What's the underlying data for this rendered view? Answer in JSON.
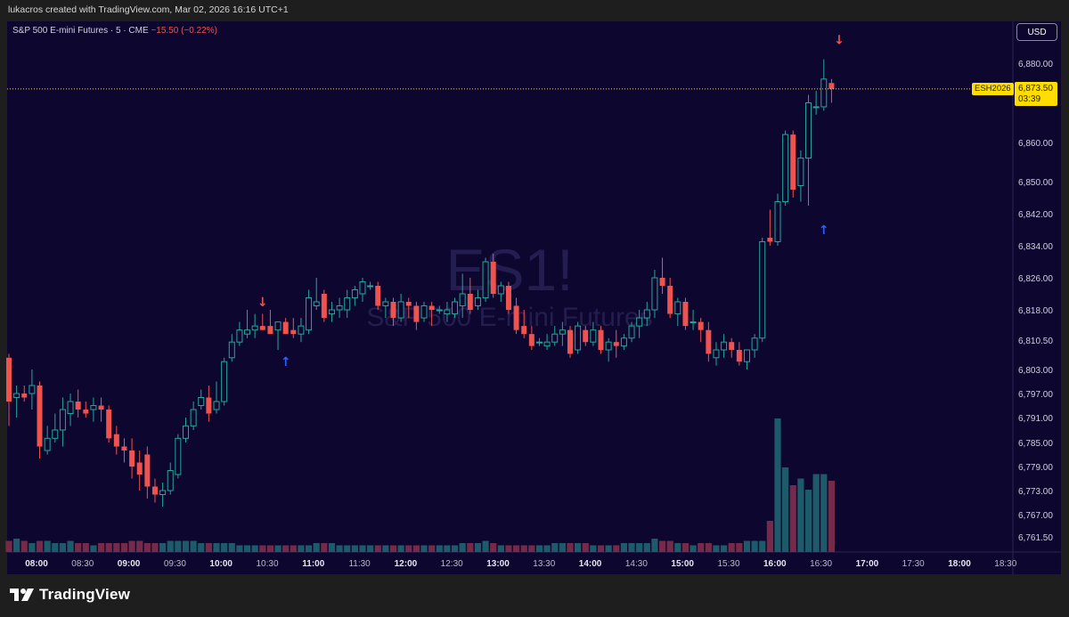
{
  "header": {
    "attribution": "lukacros created with TradingView.com, Mar 02, 2026 16:16 UTC+1"
  },
  "legend": {
    "symbol": "S&P 500 E-mini Futures · 5 · CME",
    "change": "−15.50 (−0.22%)"
  },
  "currency_button": "USD",
  "watermark": {
    "ticker": "ES1!",
    "name": "S&P 500 E-mini Futures"
  },
  "last_price": {
    "contract": "ESH2026",
    "price": "6,873.50",
    "countdown": "03:39"
  },
  "footer": {
    "brand": "TradingView"
  },
  "colors": {
    "background": "#0d062f",
    "up": "#26a69a",
    "down": "#ef5350",
    "signal_up": "#2962ff",
    "signal_down": "#ef5350",
    "price_tag": "#ffdd00"
  },
  "chart_data": {
    "type": "candlestick",
    "interval": "5",
    "x_tick_labels": [
      "08:00",
      "08:30",
      "09:00",
      "09:30",
      "10:00",
      "10:30",
      "11:00",
      "11:30",
      "12:00",
      "12:30",
      "13:00",
      "13:30",
      "14:00",
      "14:30",
      "15:00",
      "15:30",
      "16:00",
      "16:30",
      "17:00",
      "17:30",
      "18:00",
      "18:30"
    ],
    "y_tick_labels": [
      "6,880.00",
      "6,860.00",
      "6,850.00",
      "6,842.00",
      "6,834.00",
      "6,826.00",
      "6,818.00",
      "6,810.50",
      "6,803.00",
      "6,797.00",
      "6,791.00",
      "6,785.00",
      "6,779.00",
      "6,773.00",
      "6,767.00",
      "6,761.50"
    ],
    "y_tick_values": [
      6880,
      6860,
      6850,
      6842,
      6834,
      6826,
      6818,
      6810.5,
      6803,
      6797,
      6791,
      6785,
      6779,
      6773,
      6767,
      6761.5
    ],
    "start_time": "07:45",
    "last_price": 6873.5,
    "candles": [
      {
        "o": 6806,
        "h": 6807,
        "l": 6789,
        "c": 6795
      },
      {
        "o": 6796,
        "h": 6799,
        "l": 6791,
        "c": 6797
      },
      {
        "o": 6797,
        "h": 6799,
        "l": 6795,
        "c": 6796
      },
      {
        "o": 6797,
        "h": 6803,
        "l": 6793,
        "c": 6799
      },
      {
        "o": 6799,
        "h": 6800,
        "l": 6781,
        "c": 6784
      },
      {
        "o": 6783,
        "h": 6789,
        "l": 6782,
        "c": 6786
      },
      {
        "o": 6786,
        "h": 6792,
        "l": 6785,
        "c": 6788
      },
      {
        "o": 6788,
        "h": 6796,
        "l": 6784,
        "c": 6793
      },
      {
        "o": 6792,
        "h": 6797,
        "l": 6789,
        "c": 6795
      },
      {
        "o": 6795,
        "h": 6798,
        "l": 6791,
        "c": 6793
      },
      {
        "o": 6793,
        "h": 6795,
        "l": 6791,
        "c": 6792
      },
      {
        "o": 6793,
        "h": 6796,
        "l": 6790,
        "c": 6794
      },
      {
        "o": 6794,
        "h": 6796,
        "l": 6790,
        "c": 6793
      },
      {
        "o": 6793,
        "h": 6794,
        "l": 6785,
        "c": 6786
      },
      {
        "o": 6787,
        "h": 6789,
        "l": 6782,
        "c": 6784
      },
      {
        "o": 6784,
        "h": 6786,
        "l": 6780,
        "c": 6783
      },
      {
        "o": 6783,
        "h": 6786,
        "l": 6776,
        "c": 6779
      },
      {
        "o": 6780,
        "h": 6783,
        "l": 6773,
        "c": 6777
      },
      {
        "o": 6782,
        "h": 6784,
        "l": 6771,
        "c": 6774
      },
      {
        "o": 6774,
        "h": 6776,
        "l": 6770,
        "c": 6772
      },
      {
        "o": 6772,
        "h": 6775,
        "l": 6769,
        "c": 6773
      },
      {
        "o": 6773,
        "h": 6780,
        "l": 6772,
        "c": 6778
      },
      {
        "o": 6777,
        "h": 6787,
        "l": 6776,
        "c": 6786
      },
      {
        "o": 6786,
        "h": 6791,
        "l": 6785,
        "c": 6789
      },
      {
        "o": 6789,
        "h": 6795,
        "l": 6788,
        "c": 6793
      },
      {
        "o": 6794,
        "h": 6798,
        "l": 6793,
        "c": 6796
      },
      {
        "o": 6796,
        "h": 6799,
        "l": 6790,
        "c": 6792
      },
      {
        "o": 6793,
        "h": 6800,
        "l": 6792,
        "c": 6795
      },
      {
        "o": 6795,
        "h": 6806,
        "l": 6794,
        "c": 6805
      },
      {
        "o": 6806,
        "h": 6812,
        "l": 6805,
        "c": 6810
      },
      {
        "o": 6810,
        "h": 6815,
        "l": 6809,
        "c": 6813
      },
      {
        "o": 6812,
        "h": 6818,
        "l": 6811,
        "c": 6813
      },
      {
        "o": 6813,
        "h": 6817,
        "l": 6811,
        "c": 6814
      },
      {
        "o": 6814,
        "h": 6817,
        "l": 6813,
        "c": 6813
      },
      {
        "o": 6814,
        "h": 6818,
        "l": 6812,
        "c": 6812
      },
      {
        "o": 6813,
        "h": 6815,
        "l": 6808,
        "c": 6815
      },
      {
        "o": 6815,
        "h": 6816,
        "l": 6812,
        "c": 6812
      },
      {
        "o": 6813,
        "h": 6816,
        "l": 6811,
        "c": 6812
      },
      {
        "o": 6812,
        "h": 6816,
        "l": 6810,
        "c": 6814
      },
      {
        "o": 6813,
        "h": 6823,
        "l": 6812,
        "c": 6821
      },
      {
        "o": 6819,
        "h": 6826,
        "l": 6818,
        "c": 6820
      },
      {
        "o": 6822,
        "h": 6823,
        "l": 6815,
        "c": 6816
      },
      {
        "o": 6817,
        "h": 6820,
        "l": 6815,
        "c": 6818
      },
      {
        "o": 6818,
        "h": 6821,
        "l": 6816,
        "c": 6819
      },
      {
        "o": 6818,
        "h": 6823,
        "l": 6816,
        "c": 6821
      },
      {
        "o": 6821,
        "h": 6824,
        "l": 6819,
        "c": 6823
      },
      {
        "o": 6822,
        "h": 6826,
        "l": 6820,
        "c": 6825
      },
      {
        "o": 6824,
        "h": 6825,
        "l": 6823,
        "c": 6824
      },
      {
        "o": 6824,
        "h": 6825,
        "l": 6818,
        "c": 6819
      },
      {
        "o": 6819,
        "h": 6821,
        "l": 6816,
        "c": 6820
      },
      {
        "o": 6820,
        "h": 6821,
        "l": 6814,
        "c": 6816
      },
      {
        "o": 6816,
        "h": 6822,
        "l": 6815,
        "c": 6820
      },
      {
        "o": 6820,
        "h": 6821,
        "l": 6816,
        "c": 6819
      },
      {
        "o": 6819,
        "h": 6820,
        "l": 6813,
        "c": 6815
      },
      {
        "o": 6816,
        "h": 6820,
        "l": 6815,
        "c": 6819
      },
      {
        "o": 6819,
        "h": 6820,
        "l": 6814,
        "c": 6818
      },
      {
        "o": 6818,
        "h": 6819,
        "l": 6817,
        "c": 6818
      },
      {
        "o": 6817,
        "h": 6820,
        "l": 6815,
        "c": 6818
      },
      {
        "o": 6817,
        "h": 6821,
        "l": 6816,
        "c": 6820
      },
      {
        "o": 6819,
        "h": 6827,
        "l": 6816,
        "c": 6822
      },
      {
        "o": 6822,
        "h": 6826,
        "l": 6817,
        "c": 6818
      },
      {
        "o": 6819,
        "h": 6823,
        "l": 6818,
        "c": 6821
      },
      {
        "o": 6821,
        "h": 6831,
        "l": 6820,
        "c": 6830
      },
      {
        "o": 6830,
        "h": 6832,
        "l": 6821,
        "c": 6822
      },
      {
        "o": 6822,
        "h": 6825,
        "l": 6820,
        "c": 6824
      },
      {
        "o": 6824,
        "h": 6825,
        "l": 6817,
        "c": 6818
      },
      {
        "o": 6819,
        "h": 6821,
        "l": 6812,
        "c": 6813
      },
      {
        "o": 6814,
        "h": 6818,
        "l": 6811,
        "c": 6812
      },
      {
        "o": 6812,
        "h": 6814,
        "l": 6808,
        "c": 6809
      },
      {
        "o": 6810,
        "h": 6811,
        "l": 6809,
        "c": 6810
      },
      {
        "o": 6809,
        "h": 6812,
        "l": 6808,
        "c": 6810
      },
      {
        "o": 6810,
        "h": 6814,
        "l": 6809,
        "c": 6812
      },
      {
        "o": 6812,
        "h": 6815,
        "l": 6809,
        "c": 6813
      },
      {
        "o": 6813,
        "h": 6814,
        "l": 6806,
        "c": 6807
      },
      {
        "o": 6808,
        "h": 6815,
        "l": 6807,
        "c": 6814
      },
      {
        "o": 6813,
        "h": 6814,
        "l": 6809,
        "c": 6810
      },
      {
        "o": 6810,
        "h": 6815,
        "l": 6809,
        "c": 6813
      },
      {
        "o": 6813,
        "h": 6814,
        "l": 6807,
        "c": 6808
      },
      {
        "o": 6808,
        "h": 6811,
        "l": 6805,
        "c": 6810
      },
      {
        "o": 6810,
        "h": 6813,
        "l": 6806,
        "c": 6809
      },
      {
        "o": 6809,
        "h": 6812,
        "l": 6808,
        "c": 6811
      },
      {
        "o": 6811,
        "h": 6815,
        "l": 6810,
        "c": 6814
      },
      {
        "o": 6814,
        "h": 6818,
        "l": 6811,
        "c": 6816
      },
      {
        "o": 6816,
        "h": 6820,
        "l": 6814,
        "c": 6818
      },
      {
        "o": 6818,
        "h": 6828,
        "l": 6816,
        "c": 6826
      },
      {
        "o": 6826,
        "h": 6831,
        "l": 6822,
        "c": 6824
      },
      {
        "o": 6824,
        "h": 6826,
        "l": 6816,
        "c": 6817
      },
      {
        "o": 6817,
        "h": 6821,
        "l": 6814,
        "c": 6820
      },
      {
        "o": 6820,
        "h": 6821,
        "l": 6813,
        "c": 6814
      },
      {
        "o": 6815,
        "h": 6818,
        "l": 6813,
        "c": 6815
      },
      {
        "o": 6815,
        "h": 6816,
        "l": 6810,
        "c": 6813
      },
      {
        "o": 6813,
        "h": 6815,
        "l": 6805,
        "c": 6807
      },
      {
        "o": 6806,
        "h": 6810,
        "l": 6804,
        "c": 6808
      },
      {
        "o": 6808,
        "h": 6812,
        "l": 6806,
        "c": 6810
      },
      {
        "o": 6810,
        "h": 6811,
        "l": 6806,
        "c": 6808
      },
      {
        "o": 6808,
        "h": 6810,
        "l": 6804,
        "c": 6805
      },
      {
        "o": 6805,
        "h": 6808,
        "l": 6803,
        "c": 6808
      },
      {
        "o": 6808,
        "h": 6812,
        "l": 6806,
        "c": 6811
      },
      {
        "o": 6811,
        "h": 6836,
        "l": 6810,
        "c": 6835
      },
      {
        "o": 6836,
        "h": 6843,
        "l": 6834,
        "c": 6835
      },
      {
        "o": 6835,
        "h": 6847,
        "l": 6834,
        "c": 6845
      },
      {
        "o": 6845,
        "h": 6863,
        "l": 6844,
        "c": 6862
      },
      {
        "o": 6862,
        "h": 6863,
        "l": 6846,
        "c": 6848
      },
      {
        "o": 6849,
        "h": 6858,
        "l": 6845,
        "c": 6856
      },
      {
        "o": 6856,
        "h": 6872,
        "l": 6844,
        "c": 6870
      },
      {
        "o": 6869,
        "h": 6873,
        "l": 6867,
        "c": 6869
      },
      {
        "o": 6869,
        "h": 6881,
        "l": 6868,
        "c": 6876
      },
      {
        "o": 6875,
        "h": 6876,
        "l": 6870,
        "c": 6873.5
      }
    ],
    "volume_scale": "relative",
    "volumes": [
      5,
      6,
      5,
      4,
      5,
      5,
      4,
      4,
      5,
      4,
      4,
      3,
      4,
      4,
      4,
      4,
      5,
      5,
      4,
      4,
      4,
      5,
      5,
      5,
      5,
      4,
      4,
      4,
      4,
      4,
      3,
      3,
      3,
      3,
      3,
      3,
      3,
      3,
      3,
      3,
      4,
      4,
      4,
      3,
      3,
      3,
      3,
      3,
      3,
      3,
      3,
      3,
      3,
      3,
      3,
      3,
      3,
      3,
      3,
      4,
      4,
      4,
      5,
      4,
      3,
      3,
      3,
      3,
      3,
      3,
      3,
      4,
      4,
      4,
      4,
      4,
      3,
      3,
      3,
      3,
      4,
      4,
      4,
      4,
      6,
      5,
      5,
      4,
      4,
      3,
      4,
      4,
      3,
      3,
      4,
      4,
      5,
      5,
      5,
      14,
      60,
      38,
      30,
      33,
      28,
      35,
      35,
      32,
      10
    ],
    "signals": [
      {
        "bar": 33,
        "type": "sell",
        "price": 6820
      },
      {
        "bar": 36,
        "type": "buy",
        "price": 6805
      },
      {
        "bar": 108,
        "type": "sell",
        "price": 6886
      },
      {
        "bar": 106,
        "type": "buy",
        "price": 6838
      }
    ]
  }
}
